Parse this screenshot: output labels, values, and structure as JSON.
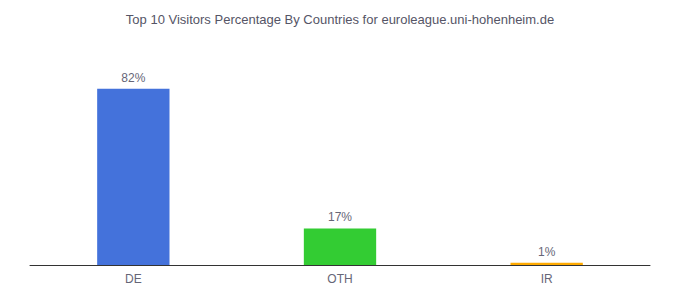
{
  "chart_data": {
    "type": "bar",
    "title": "Top 10 Visitors Percentage By Countries for euroleague.uni-hohenheim.de",
    "categories": [
      "DE",
      "OTH",
      "IR"
    ],
    "values": [
      82,
      17,
      1
    ],
    "value_labels": [
      "82%",
      "17%",
      "1%"
    ],
    "colors": [
      "#4472db",
      "#33cc33",
      "#ffaa00"
    ],
    "ylim": [
      0,
      100
    ],
    "grid": false,
    "data_labels": true,
    "tick_labels": "x"
  }
}
